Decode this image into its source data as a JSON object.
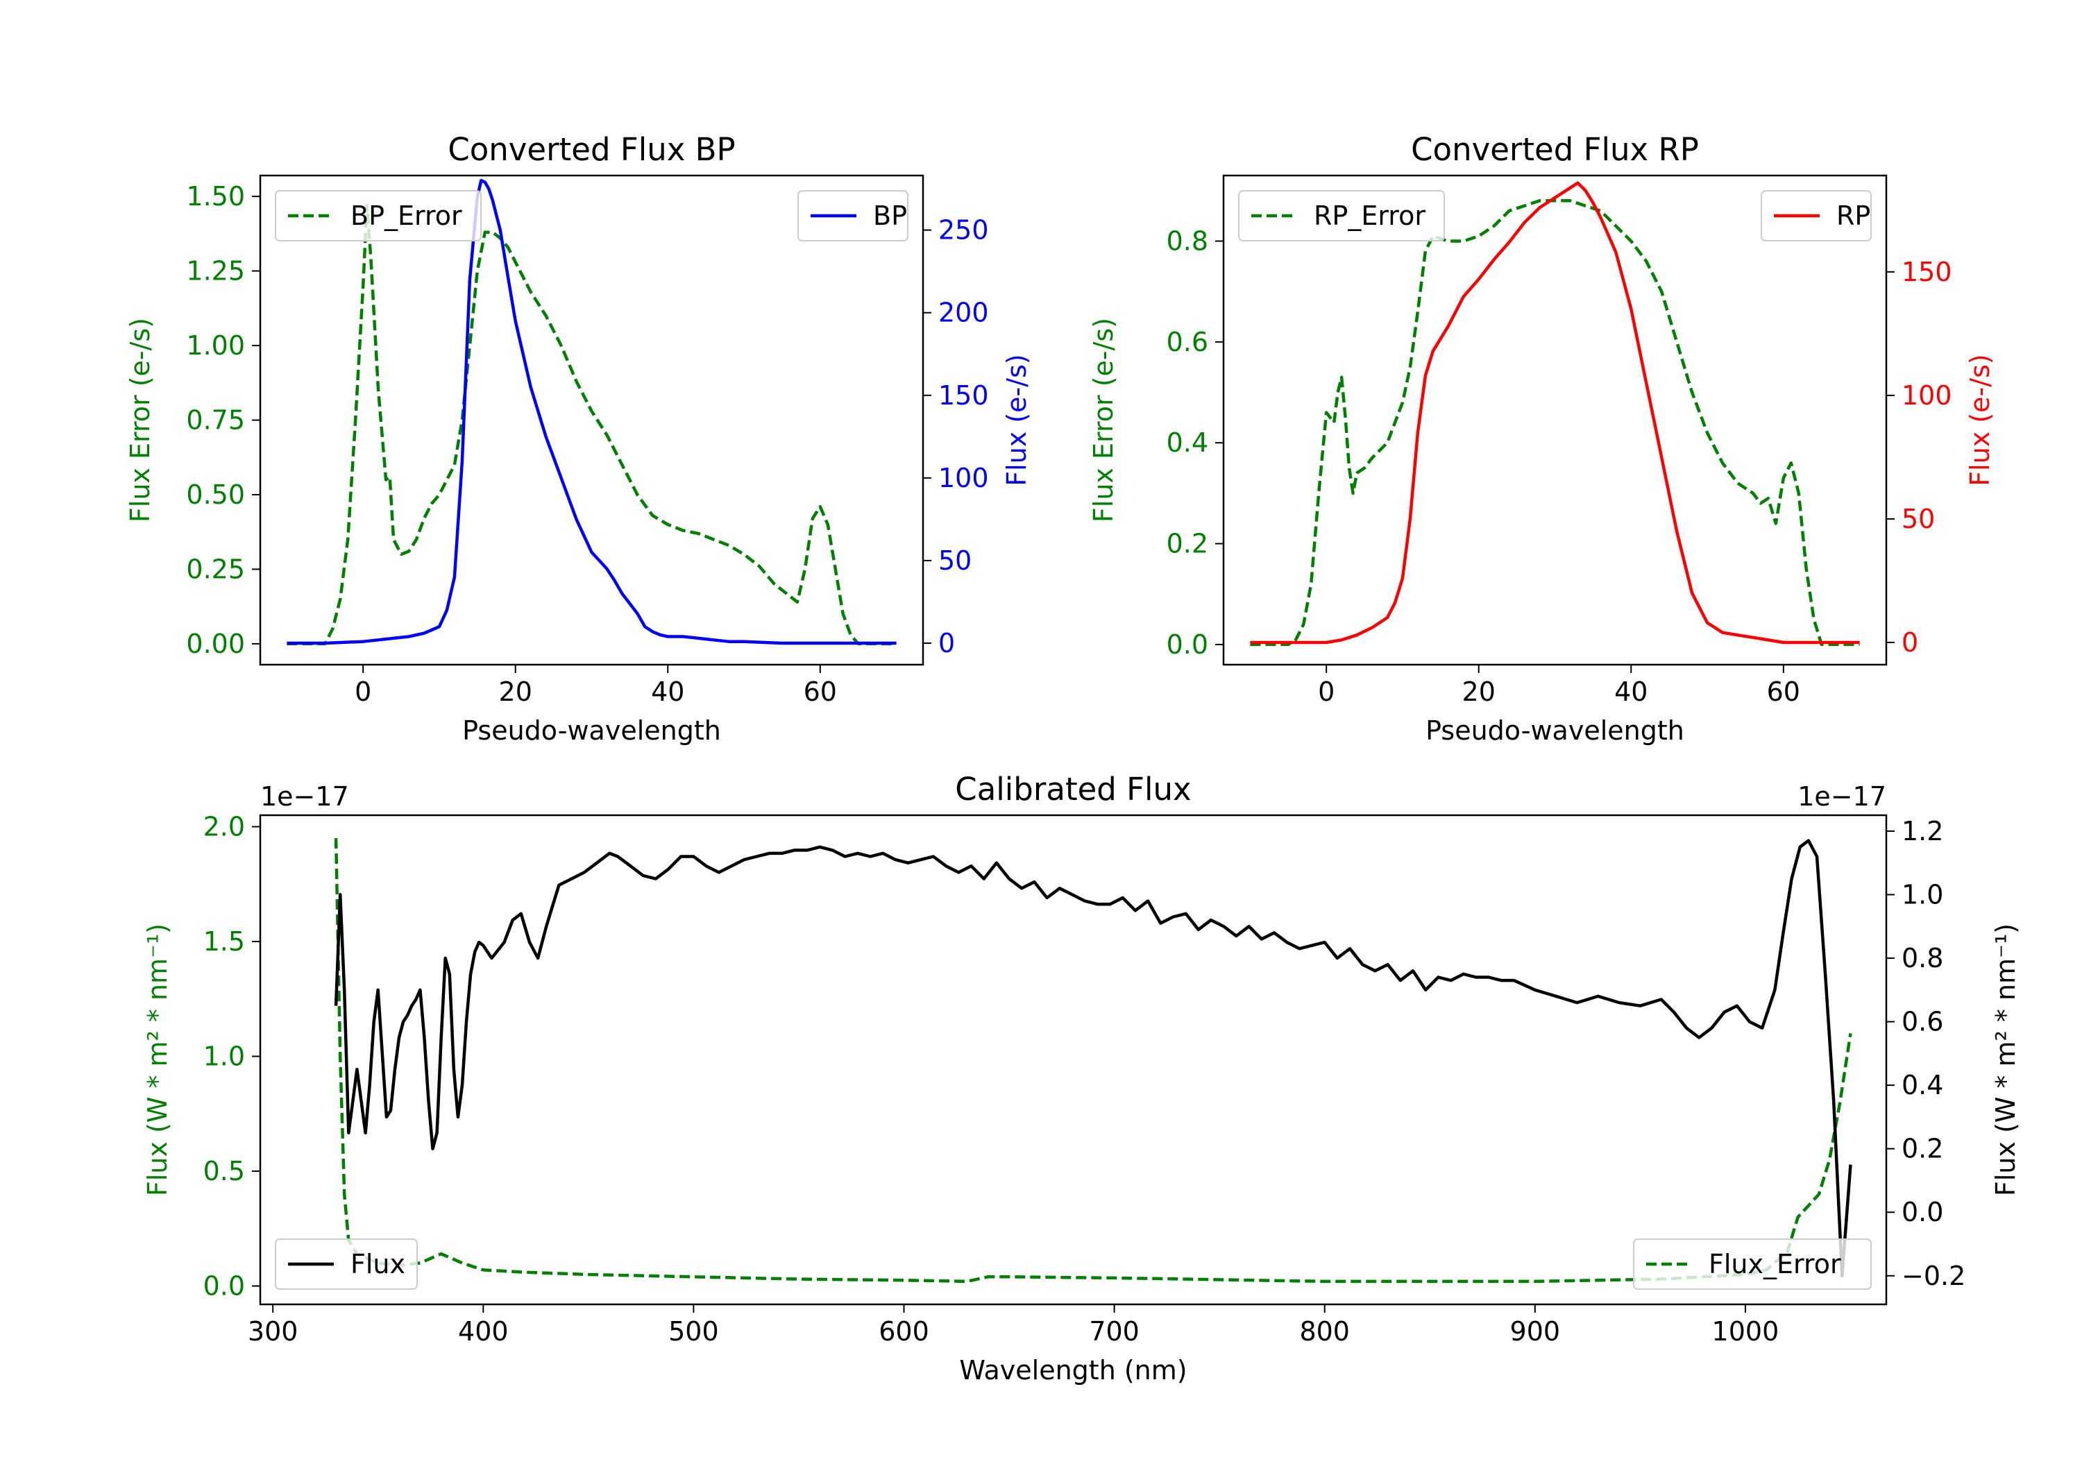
{
  "colors": {
    "error": "#008000",
    "bp": "#0000ff",
    "rp": "#ff0000",
    "flux": "#000000",
    "axis": "#000000",
    "legend_edge": "#cccccc",
    "background": "#ffffff"
  },
  "chart_data": [
    {
      "id": "bp",
      "type": "line",
      "title": "Converted Flux BP",
      "xlabel": "Pseudo-wavelength",
      "ylabel_left": "Flux Error (e-/s)",
      "ylabel_right": "Flux (e-/s)",
      "xlim": [
        -13.5,
        73.5
      ],
      "ylim_left": [
        -0.07,
        1.57
      ],
      "ylim_right": [
        -13,
        283
      ],
      "xticks": [
        0,
        20,
        40,
        60
      ],
      "yticks_left": [
        0.0,
        0.25,
        0.5,
        0.75,
        1.0,
        1.25,
        1.5
      ],
      "ytick_labels_left": [
        "0.00",
        "0.25",
        "0.50",
        "0.75",
        "1.00",
        "1.25",
        "1.50"
      ],
      "yticks_right": [
        0,
        50,
        100,
        150,
        200,
        250
      ],
      "ytick_labels_right": [
        "0",
        "50",
        "100",
        "150",
        "200",
        "250"
      ],
      "series": [
        {
          "name": "BP_Error",
          "axis": "left",
          "style": "dashed",
          "color_key": "error",
          "x": [
            -10,
            -5,
            -4,
            -3,
            -2,
            -1,
            0,
            0.5,
            1,
            2,
            3,
            3.5,
            4,
            5,
            6,
            7,
            8,
            9,
            10,
            11,
            12,
            13,
            14,
            15,
            16,
            17,
            18,
            19,
            20,
            22,
            24,
            26,
            28,
            30,
            32,
            34,
            36,
            38,
            40,
            42,
            44,
            46,
            48,
            50,
            52,
            54,
            56,
            57,
            58,
            59,
            60,
            61,
            62,
            63,
            64,
            65,
            66,
            70
          ],
          "y": [
            0.0,
            0.0,
            0.05,
            0.15,
            0.35,
            0.75,
            1.2,
            1.47,
            1.3,
            0.85,
            0.55,
            0.56,
            0.35,
            0.3,
            0.31,
            0.35,
            0.42,
            0.47,
            0.5,
            0.55,
            0.6,
            0.75,
            1.0,
            1.25,
            1.38,
            1.38,
            1.36,
            1.33,
            1.28,
            1.18,
            1.1,
            1.0,
            0.88,
            0.78,
            0.7,
            0.6,
            0.5,
            0.43,
            0.4,
            0.38,
            0.37,
            0.35,
            0.33,
            0.3,
            0.26,
            0.2,
            0.16,
            0.14,
            0.25,
            0.42,
            0.46,
            0.4,
            0.25,
            0.1,
            0.03,
            0.0,
            0.0,
            0.0
          ]
        },
        {
          "name": "BP",
          "axis": "right",
          "style": "solid",
          "color_key": "bp",
          "x": [
            -10,
            -5,
            0,
            2,
            4,
            6,
            8,
            9,
            10,
            11,
            12,
            13,
            14,
            15,
            15.5,
            16,
            16.5,
            17,
            18,
            19,
            20,
            22,
            24,
            26,
            28,
            30,
            31,
            32,
            33,
            34,
            35,
            36,
            37,
            38,
            39,
            40,
            42,
            44,
            46,
            48,
            50,
            55,
            60,
            65,
            70
          ],
          "y": [
            0,
            0,
            1,
            2,
            3,
            4,
            6,
            8,
            10,
            20,
            40,
            110,
            220,
            270,
            280,
            279,
            275,
            268,
            250,
            222,
            195,
            155,
            125,
            100,
            75,
            55,
            50,
            45,
            38,
            30,
            24,
            18,
            10,
            7,
            5,
            4,
            4,
            3,
            2,
            1,
            1,
            0,
            0,
            0,
            0
          ]
        }
      ],
      "legend": [
        {
          "label": "BP_Error",
          "position": "upper left"
        },
        {
          "label": "BP",
          "position": "upper right"
        }
      ]
    },
    {
      "id": "rp",
      "type": "line",
      "title": "Converted Flux RP",
      "xlabel": "Pseudo-wavelength",
      "ylabel_left": "Flux Error (e-/s)",
      "ylabel_right": "Flux (e-/s)",
      "xlim": [
        -13.5,
        73.5
      ],
      "ylim_left": [
        -0.04,
        0.93
      ],
      "ylim_right": [
        -9,
        189
      ],
      "xticks": [
        0,
        20,
        40,
        60
      ],
      "yticks_left": [
        0.0,
        0.2,
        0.4,
        0.6,
        0.8
      ],
      "ytick_labels_left": [
        "0.0",
        "0.2",
        "0.4",
        "0.6",
        "0.8"
      ],
      "yticks_right": [
        0,
        50,
        100,
        150
      ],
      "ytick_labels_right": [
        "0",
        "50",
        "100",
        "150"
      ],
      "series": [
        {
          "name": "RP_Error",
          "axis": "left",
          "style": "dashed",
          "color_key": "error",
          "x": [
            -10,
            -5,
            -4,
            -3,
            -2,
            -1,
            0,
            1,
            1.5,
            2,
            2.5,
            3,
            3.5,
            4,
            5,
            6,
            8,
            10,
            11,
            12,
            13,
            14,
            16,
            18,
            20,
            22,
            24,
            26,
            28,
            30,
            32,
            34,
            36,
            38,
            40,
            42,
            44,
            46,
            48,
            50,
            52,
            54,
            55,
            56,
            57,
            58,
            59,
            60,
            61,
            62,
            63,
            64,
            65,
            70
          ],
          "y": [
            0.0,
            0.0,
            0.01,
            0.04,
            0.12,
            0.3,
            0.46,
            0.44,
            0.5,
            0.53,
            0.45,
            0.35,
            0.3,
            0.34,
            0.35,
            0.37,
            0.4,
            0.48,
            0.55,
            0.66,
            0.78,
            0.81,
            0.8,
            0.8,
            0.81,
            0.83,
            0.86,
            0.87,
            0.88,
            0.88,
            0.88,
            0.87,
            0.86,
            0.83,
            0.8,
            0.76,
            0.7,
            0.6,
            0.5,
            0.42,
            0.36,
            0.32,
            0.31,
            0.3,
            0.28,
            0.29,
            0.24,
            0.33,
            0.36,
            0.3,
            0.15,
            0.05,
            0.0,
            0.0
          ]
        },
        {
          "name": "RP",
          "axis": "right",
          "style": "solid",
          "color_key": "rp",
          "x": [
            -10,
            -5,
            0,
            2,
            4,
            6,
            8,
            9,
            10,
            11,
            12,
            13,
            14,
            16,
            18,
            20,
            22,
            24,
            26,
            28,
            30,
            32,
            33,
            34,
            35,
            36,
            38,
            40,
            42,
            44,
            46,
            48,
            50,
            52,
            54,
            56,
            58,
            60,
            62,
            65,
            70
          ],
          "y": [
            0,
            0,
            0,
            1,
            3,
            6,
            10,
            16,
            26,
            50,
            85,
            108,
            118,
            128,
            140,
            147,
            155,
            162,
            170,
            176,
            180,
            184,
            186,
            183,
            178,
            172,
            158,
            135,
            105,
            75,
            45,
            20,
            8,
            4,
            3,
            2,
            1,
            0,
            0,
            0,
            0
          ]
        }
      ],
      "legend": [
        {
          "label": "RP_Error",
          "position": "upper left"
        },
        {
          "label": "RP",
          "position": "upper right"
        }
      ]
    },
    {
      "id": "calibrated",
      "type": "line",
      "title": "Calibrated Flux",
      "xlabel": "Wavelength (nm)",
      "ylabel_left": "Flux (W * m² * nm⁻¹)",
      "ylabel_right": "Flux (W * m² * nm⁻¹)",
      "offset_left": "1e−17",
      "offset_right": "1e−17",
      "xlim": [
        294,
        1067
      ],
      "ylim_left": [
        -0.08,
        2.05
      ],
      "ylim_right": [
        -0.29,
        1.25
      ],
      "xticks": [
        300,
        400,
        500,
        600,
        700,
        800,
        900,
        1000
      ],
      "yticks_left": [
        0.0,
        0.5,
        1.0,
        1.5,
        2.0
      ],
      "ytick_labels_left": [
        "0.0",
        "0.5",
        "1.0",
        "1.5",
        "2.0"
      ],
      "yticks_right": [
        -0.2,
        0.0,
        0.2,
        0.4,
        0.6,
        0.8,
        1.0,
        1.2
      ],
      "ytick_labels_right": [
        "−0.2",
        "0.0",
        "0.2",
        "0.4",
        "0.6",
        "0.8",
        "1.0",
        "1.2"
      ],
      "series": [
        {
          "name": "Flux_Error",
          "axis": "left",
          "style": "dashed",
          "color_key": "error",
          "x": [
            330,
            332,
            334,
            336,
            340,
            350,
            360,
            370,
            380,
            390,
            400,
            420,
            450,
            500,
            550,
            600,
            630,
            640,
            650,
            700,
            800,
            900,
            960,
            1000,
            1010,
            1020,
            1025,
            1030,
            1035,
            1040,
            1045,
            1050
          ],
          "y": [
            1.95,
            1.0,
            0.4,
            0.2,
            0.14,
            0.1,
            0.09,
            0.1,
            0.14,
            0.1,
            0.07,
            0.06,
            0.05,
            0.04,
            0.03,
            0.025,
            0.02,
            0.04,
            0.04,
            0.035,
            0.02,
            0.02,
            0.03,
            0.05,
            0.07,
            0.15,
            0.3,
            0.35,
            0.4,
            0.55,
            0.8,
            1.1
          ]
        },
        {
          "name": "Flux",
          "axis": "right",
          "style": "solid",
          "color_key": "flux",
          "x": [
            330,
            332,
            334,
            336,
            338,
            340,
            342,
            344,
            346,
            348,
            350,
            352,
            354,
            356,
            358,
            360,
            362,
            364,
            366,
            368,
            370,
            372,
            374,
            376,
            378,
            380,
            382,
            384,
            386,
            388,
            390,
            392,
            394,
            396,
            398,
            400,
            404,
            410,
            414,
            418,
            422,
            426,
            430,
            436,
            442,
            448,
            454,
            460,
            464,
            470,
            476,
            482,
            488,
            494,
            500,
            506,
            512,
            518,
            524,
            530,
            536,
            542,
            548,
            554,
            560,
            566,
            572,
            578,
            584,
            590,
            596,
            602,
            608,
            614,
            620,
            626,
            632,
            638,
            644,
            650,
            656,
            662,
            668,
            674,
            680,
            686,
            692,
            698,
            704,
            710,
            716,
            722,
            728,
            734,
            740,
            746,
            752,
            758,
            764,
            770,
            776,
            782,
            788,
            794,
            800,
            806,
            812,
            818,
            824,
            830,
            836,
            842,
            848,
            854,
            860,
            866,
            872,
            878,
            884,
            890,
            900,
            910,
            920,
            930,
            940,
            950,
            960,
            966,
            972,
            978,
            984,
            990,
            996,
            1002,
            1008,
            1014,
            1018,
            1022,
            1026,
            1030,
            1034,
            1038,
            1042,
            1046,
            1050
          ],
          "y": [
            0.65,
            1.0,
            0.7,
            0.25,
            0.35,
            0.45,
            0.35,
            0.25,
            0.4,
            0.6,
            0.7,
            0.5,
            0.3,
            0.32,
            0.45,
            0.55,
            0.6,
            0.62,
            0.65,
            0.67,
            0.7,
            0.55,
            0.35,
            0.2,
            0.25,
            0.55,
            0.8,
            0.75,
            0.45,
            0.3,
            0.4,
            0.6,
            0.75,
            0.82,
            0.85,
            0.84,
            0.8,
            0.85,
            0.92,
            0.94,
            0.85,
            0.8,
            0.9,
            1.03,
            1.05,
            1.07,
            1.1,
            1.13,
            1.12,
            1.09,
            1.06,
            1.05,
            1.08,
            1.12,
            1.12,
            1.09,
            1.07,
            1.09,
            1.11,
            1.12,
            1.13,
            1.13,
            1.14,
            1.14,
            1.15,
            1.14,
            1.12,
            1.13,
            1.12,
            1.13,
            1.11,
            1.1,
            1.11,
            1.12,
            1.09,
            1.07,
            1.09,
            1.05,
            1.1,
            1.05,
            1.02,
            1.04,
            0.99,
            1.02,
            1.0,
            0.98,
            0.97,
            0.97,
            0.99,
            0.95,
            0.98,
            0.91,
            0.93,
            0.94,
            0.89,
            0.92,
            0.9,
            0.87,
            0.9,
            0.86,
            0.88,
            0.85,
            0.83,
            0.84,
            0.85,
            0.8,
            0.83,
            0.78,
            0.76,
            0.78,
            0.73,
            0.76,
            0.7,
            0.74,
            0.73,
            0.75,
            0.74,
            0.74,
            0.73,
            0.73,
            0.7,
            0.68,
            0.66,
            0.68,
            0.66,
            0.65,
            0.67,
            0.63,
            0.58,
            0.55,
            0.58,
            0.63,
            0.65,
            0.6,
            0.58,
            0.7,
            0.88,
            1.05,
            1.15,
            1.17,
            1.12,
            0.75,
            0.35,
            -0.2,
            0.15
          ]
        }
      ],
      "legend": [
        {
          "label": "Flux",
          "position": "lower left"
        },
        {
          "label": "Flux_Error",
          "position": "lower right"
        }
      ]
    }
  ]
}
